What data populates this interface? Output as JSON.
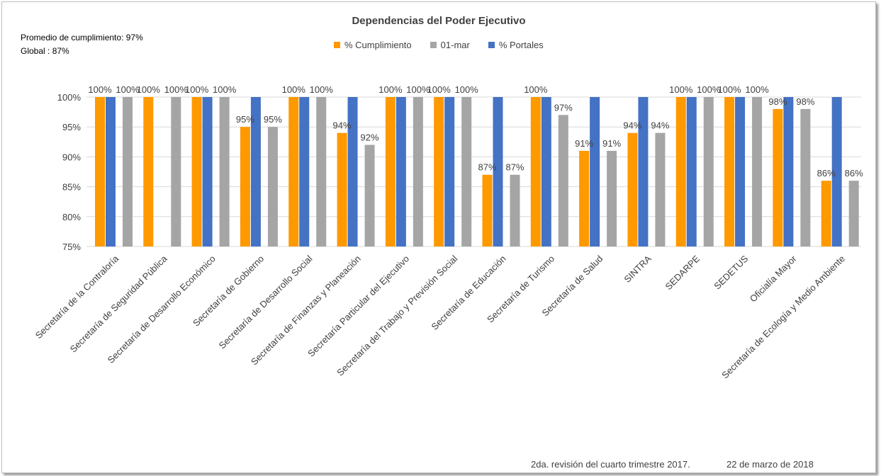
{
  "chart_data": {
    "type": "bar",
    "title": "Dependencias del Poder Ejecutivo",
    "notes": [
      "Promedio de cumplimiento: 97%",
      "Global : 87%"
    ],
    "footer": {
      "revision": "2da. revisión del cuarto trimestre 2017.",
      "date": "22 de marzo de 2018"
    },
    "legend_position": "top",
    "ylim": [
      75,
      100
    ],
    "yticks": [
      75,
      80,
      85,
      90,
      95,
      100
    ],
    "ytick_labels": [
      "75%",
      "80%",
      "85%",
      "90%",
      "95%",
      "100%"
    ],
    "grid": true,
    "categories": [
      "Secretaría de la Contraloría",
      "Secretaría de Seguridad Pública",
      "Secretaría de Desarrollo Económico",
      "Secretaría de Gobierno",
      "Secretaría de Desarrollo Social",
      "Secretaría de Finanzas y Planeación",
      "Secretaría Particular del Ejecutivo",
      "Secretaría del Trabajo y Previsión Social",
      "Secretaría de Educación",
      "Secretaría de Turismo",
      "Secretaría de Salud",
      "SINTRA",
      "SEDARPE",
      "SEDETUS",
      "Oficialía Mayor",
      "Secretaría de Ecología y Medio Ambiente"
    ],
    "series": [
      {
        "name": "% Cumplimiento",
        "color": "#ff9900",
        "values": [
          100,
          100,
          100,
          95,
          100,
          94,
          100,
          100,
          87,
          100,
          91,
          94,
          100,
          100,
          98,
          86
        ],
        "labels": [
          "100%",
          "100%",
          "100%",
          "95%",
          "100%",
          "94%",
          "100%",
          "100%",
          "87%",
          "100%",
          "91%",
          "94%",
          "100%",
          "100%",
          "98%",
          "86%"
        ]
      },
      {
        "name": "01-mar",
        "color": "#a5a5a5",
        "values": [
          100,
          100,
          100,
          95,
          100,
          92,
          100,
          100,
          87,
          97,
          91,
          94,
          100,
          100,
          98,
          86
        ],
        "labels": [
          "100%",
          "100%",
          "100%",
          "95%",
          "100%",
          "92%",
          "100%",
          "100%",
          "87%",
          "97%",
          "91%",
          "94%",
          "100%",
          "100%",
          "98%",
          "86%"
        ]
      },
      {
        "name": "% Portales",
        "color": "#4472c4",
        "values": [
          100,
          null,
          100,
          100,
          100,
          100,
          100,
          100,
          100,
          100,
          100,
          100,
          100,
          100,
          100,
          100
        ]
      }
    ]
  }
}
